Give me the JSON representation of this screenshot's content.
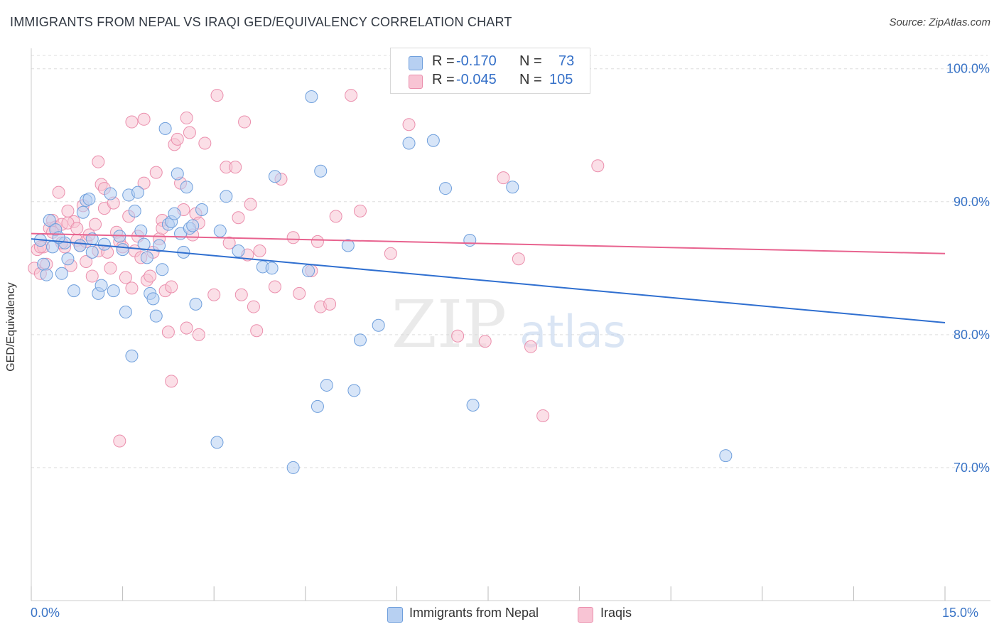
{
  "title": "IMMIGRANTS FROM NEPAL VS IRAQI GED/EQUIVALENCY CORRELATION CHART",
  "source": "Source: ZipAtlas.com",
  "watermark": {
    "zip": "ZIP",
    "atlas": "atlas"
  },
  "legend": {
    "r_label": "R =",
    "n_label": "N =",
    "series": [
      {
        "r": "-0.170",
        "n": "73"
      },
      {
        "r": "-0.045",
        "n": "105"
      }
    ]
  },
  "bottom_legend": [
    "Immigrants from Nepal",
    "Iraqis"
  ],
  "x_labels": {
    "min": "0.0%",
    "max": "15.0%"
  },
  "chart_data": {
    "type": "scatter",
    "xlabel": "",
    "ylabel": "GED/Equivalency",
    "xlim": [
      0,
      15
    ],
    "ylim": [
      60,
      101
    ],
    "y_ticks": [
      {
        "value": 100,
        "label": "100.0%"
      },
      {
        "value": 90,
        "label": "90.0%"
      },
      {
        "value": 80,
        "label": "80.0%"
      },
      {
        "value": 70,
        "label": "70.0%"
      }
    ],
    "grid": true,
    "colors": {
      "nepal_fill": "#b7d0f2",
      "nepal_stroke": "#6f9fdc",
      "nepal_line": "#2f6fd0",
      "iraqi_fill": "#f8c4d4",
      "iraqi_stroke": "#eb8fad",
      "iraqi_line": "#e8638f",
      "tick_label": "#3a74c6",
      "grid": "#dddddd"
    },
    "series": [
      {
        "name": "Immigrants from Nepal",
        "trend": {
          "x": [
            0,
            15
          ],
          "y": [
            87.2,
            80.9
          ]
        },
        "points": [
          [
            0.15,
            87.1
          ],
          [
            0.2,
            85.3
          ],
          [
            0.3,
            88.6
          ],
          [
            0.35,
            86.6
          ],
          [
            0.4,
            87.9
          ],
          [
            0.5,
            84.6
          ],
          [
            0.55,
            86.9
          ],
          [
            0.6,
            85.7
          ],
          [
            0.7,
            83.3
          ],
          [
            0.8,
            86.7
          ],
          [
            0.85,
            89.2
          ],
          [
            0.9,
            90.1
          ],
          [
            0.95,
            90.2
          ],
          [
            1.0,
            86.2
          ],
          [
            1.1,
            83.1
          ],
          [
            1.15,
            83.7
          ],
          [
            1.2,
            86.8
          ],
          [
            1.3,
            90.6
          ],
          [
            1.35,
            83.3
          ],
          [
            1.45,
            87.4
          ],
          [
            1.5,
            86.4
          ],
          [
            1.55,
            81.7
          ],
          [
            1.6,
            90.5
          ],
          [
            1.65,
            78.4
          ],
          [
            1.7,
            89.3
          ],
          [
            1.75,
            90.7
          ],
          [
            1.8,
            87.8
          ],
          [
            1.85,
            86.8
          ],
          [
            1.9,
            85.8
          ],
          [
            1.95,
            83.1
          ],
          [
            2.0,
            82.7
          ],
          [
            2.05,
            81.4
          ],
          [
            2.1,
            86.7
          ],
          [
            2.15,
            84.9
          ],
          [
            2.2,
            95.5
          ],
          [
            2.25,
            88.3
          ],
          [
            2.3,
            88.5
          ],
          [
            2.35,
            89.1
          ],
          [
            2.4,
            92.1
          ],
          [
            2.45,
            87.6
          ],
          [
            2.5,
            86.2
          ],
          [
            2.55,
            91.1
          ],
          [
            2.6,
            88.0
          ],
          [
            2.65,
            88.2
          ],
          [
            2.7,
            82.3
          ],
          [
            2.8,
            89.4
          ],
          [
            3.1,
            87.8
          ],
          [
            3.2,
            90.4
          ],
          [
            3.05,
            71.9
          ],
          [
            3.4,
            86.3
          ],
          [
            3.8,
            85.1
          ],
          [
            3.95,
            85.0
          ],
          [
            4.0,
            91.9
          ],
          [
            4.3,
            70.0
          ],
          [
            4.55,
            84.8
          ],
          [
            4.6,
            97.9
          ],
          [
            4.7,
            74.6
          ],
          [
            4.75,
            92.3
          ],
          [
            4.85,
            76.2
          ],
          [
            5.2,
            86.7
          ],
          [
            5.3,
            75.8
          ],
          [
            5.4,
            79.6
          ],
          [
            5.7,
            80.7
          ],
          [
            6.2,
            94.4
          ],
          [
            6.6,
            94.6
          ],
          [
            6.8,
            91.0
          ],
          [
            7.2,
            87.1
          ],
          [
            7.25,
            74.7
          ],
          [
            7.9,
            91.1
          ],
          [
            11.4,
            70.9
          ],
          [
            0.25,
            84.5
          ],
          [
            0.45,
            87.3
          ],
          [
            1.0,
            87.2
          ]
        ]
      },
      {
        "name": "Iraqis",
        "trend": {
          "x": [
            0,
            15
          ],
          "y": [
            87.6,
            86.1
          ]
        },
        "points": [
          [
            0.05,
            85.0
          ],
          [
            0.1,
            86.4
          ],
          [
            0.15,
            84.6
          ],
          [
            0.2,
            86.6
          ],
          [
            0.25,
            85.3
          ],
          [
            0.3,
            88.0
          ],
          [
            0.35,
            88.6
          ],
          [
            0.4,
            88.1
          ],
          [
            0.45,
            90.7
          ],
          [
            0.5,
            88.3
          ],
          [
            0.55,
            86.6
          ],
          [
            0.6,
            89.3
          ],
          [
            0.65,
            85.2
          ],
          [
            0.7,
            88.5
          ],
          [
            0.75,
            87.1
          ],
          [
            0.8,
            86.7
          ],
          [
            0.85,
            89.7
          ],
          [
            0.9,
            87.0
          ],
          [
            0.95,
            87.5
          ],
          [
            1.0,
            84.4
          ],
          [
            1.05,
            88.3
          ],
          [
            1.1,
            86.3
          ],
          [
            1.15,
            91.3
          ],
          [
            1.2,
            89.5
          ],
          [
            1.25,
            86.2
          ],
          [
            1.3,
            85.0
          ],
          [
            1.35,
            89.9
          ],
          [
            1.4,
            87.7
          ],
          [
            1.45,
            87.0
          ],
          [
            1.5,
            86.6
          ],
          [
            1.55,
            84.3
          ],
          [
            1.6,
            88.9
          ],
          [
            1.65,
            83.5
          ],
          [
            1.7,
            86.3
          ],
          [
            1.75,
            87.4
          ],
          [
            1.8,
            85.8
          ],
          [
            1.85,
            91.4
          ],
          [
            1.9,
            84.1
          ],
          [
            1.95,
            84.4
          ],
          [
            2.0,
            86.2
          ],
          [
            2.05,
            92.2
          ],
          [
            2.1,
            87.2
          ],
          [
            2.15,
            88.6
          ],
          [
            2.2,
            83.3
          ],
          [
            2.25,
            80.2
          ],
          [
            2.3,
            83.6
          ],
          [
            2.35,
            94.3
          ],
          [
            2.4,
            94.7
          ],
          [
            2.45,
            91.4
          ],
          [
            2.5,
            89.4
          ],
          [
            2.55,
            80.5
          ],
          [
            2.6,
            95.2
          ],
          [
            2.65,
            87.5
          ],
          [
            2.7,
            89.1
          ],
          [
            2.75,
            80.0
          ],
          [
            2.85,
            94.4
          ],
          [
            3.0,
            83.0
          ],
          [
            3.05,
            98.0
          ],
          [
            3.2,
            92.6
          ],
          [
            3.35,
            92.6
          ],
          [
            3.45,
            83.0
          ],
          [
            3.5,
            96.0
          ],
          [
            3.55,
            86.0
          ],
          [
            3.6,
            89.8
          ],
          [
            3.65,
            82.1
          ],
          [
            3.7,
            80.3
          ],
          [
            3.75,
            86.3
          ],
          [
            4.0,
            83.6
          ],
          [
            4.1,
            91.7
          ],
          [
            4.3,
            87.3
          ],
          [
            4.4,
            83.1
          ],
          [
            4.6,
            84.8
          ],
          [
            4.7,
            87.0
          ],
          [
            4.75,
            82.1
          ],
          [
            4.9,
            82.3
          ],
          [
            5.0,
            88.9
          ],
          [
            5.25,
            98.0
          ],
          [
            5.4,
            89.3
          ],
          [
            5.9,
            86.1
          ],
          [
            6.2,
            95.8
          ],
          [
            6.4,
            100.2
          ],
          [
            7.0,
            79.9
          ],
          [
            7.45,
            79.5
          ],
          [
            7.75,
            91.8
          ],
          [
            8.0,
            85.7
          ],
          [
            8.2,
            79.1
          ],
          [
            8.4,
            73.9
          ],
          [
            9.3,
            92.7
          ],
          [
            1.45,
            72.0
          ],
          [
            1.65,
            96.0
          ],
          [
            1.85,
            96.2
          ],
          [
            2.3,
            76.5
          ],
          [
            2.55,
            96.3
          ],
          [
            1.1,
            93.0
          ],
          [
            0.9,
            85.5
          ],
          [
            0.6,
            88.4
          ],
          [
            0.35,
            87.7
          ],
          [
            2.75,
            88.4
          ],
          [
            3.25,
            86.9
          ],
          [
            3.4,
            88.8
          ],
          [
            1.2,
            91.0
          ],
          [
            0.75,
            88.0
          ],
          [
            0.5,
            86.9
          ],
          [
            0.15,
            86.6
          ],
          [
            2.15,
            88.0
          ]
        ]
      }
    ]
  }
}
